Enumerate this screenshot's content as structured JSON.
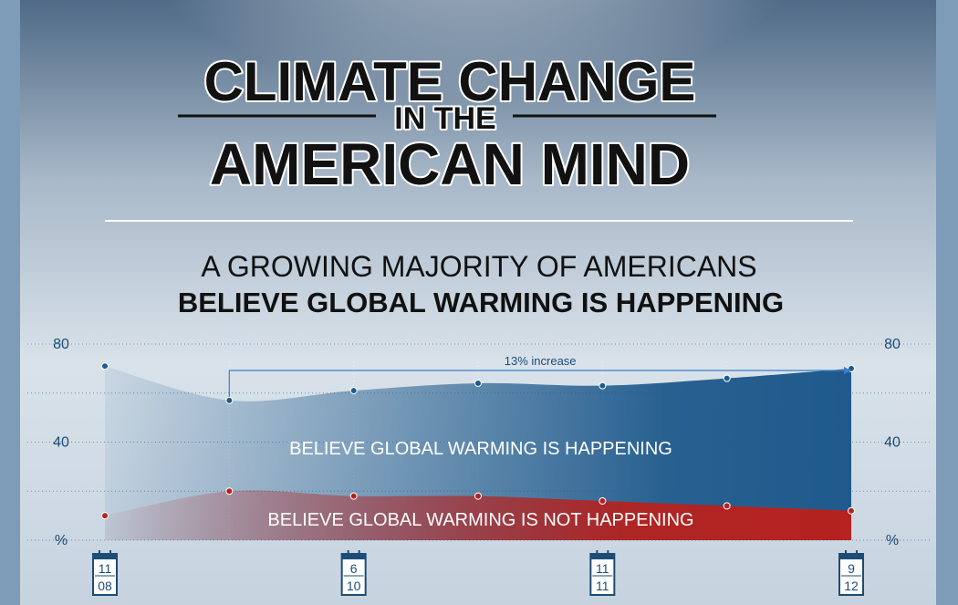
{
  "chart_data": {
    "type": "area",
    "title": [
      "CLIMATE CHANGE",
      "IN THE",
      "AMERICAN MIND"
    ],
    "subtitle": [
      "A GROWING MAJORITY OF AMERICANS",
      "BELIEVE GLOBAL WARMING IS HAPPENING"
    ],
    "categories": [
      [
        "11",
        "08"
      ],
      null,
      [
        "6",
        "10"
      ],
      null,
      [
        "11",
        "11"
      ],
      null,
      [
        "9",
        "12"
      ]
    ],
    "series": [
      {
        "name": "BELIEVE GLOBAL WARMING IS HAPPENING",
        "color": "#1f5a8c",
        "values": [
          71,
          57,
          61,
          64,
          63,
          66,
          70
        ]
      },
      {
        "name": "BELIEVE GLOBAL WARMING IS NOT HAPPENING",
        "color": "#b5221f",
        "values": [
          10,
          20,
          18,
          18,
          16,
          14,
          12
        ]
      }
    ],
    "annotation": "13% increase",
    "ylim": [
      0,
      80
    ],
    "yticks": [
      {
        "value": 0,
        "label": "%"
      },
      40,
      80
    ],
    "minor_yticks": [
      20,
      60
    ],
    "y2lim": [
      0,
      80
    ],
    "y2ticks": [
      {
        "value": 0,
        "label": "%"
      },
      40,
      80
    ],
    "grid": true
  }
}
